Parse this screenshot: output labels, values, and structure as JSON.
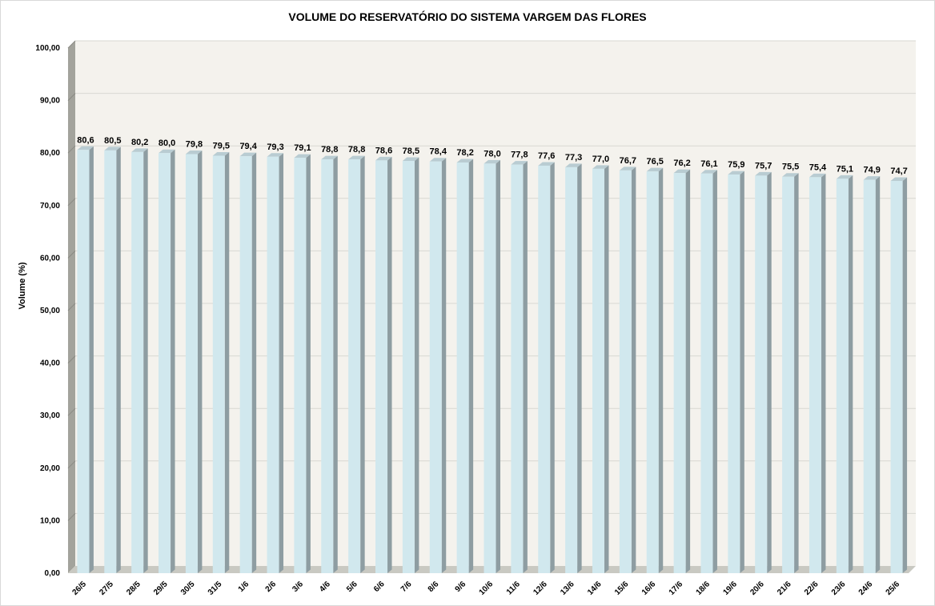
{
  "chart_data": {
    "type": "bar",
    "title": "VOLUME DO RESERVATÓRIO DO SISTEMA VARGEM DAS FLORES",
    "xlabel": "",
    "ylabel": "Volume (%)",
    "ylim": [
      0,
      100
    ],
    "yticks": [
      "0,00",
      "10,00",
      "20,00",
      "30,00",
      "40,00",
      "50,00",
      "60,00",
      "70,00",
      "80,00",
      "90,00",
      "100,00"
    ],
    "grid": true,
    "legend": "none",
    "categories": [
      "26/5",
      "27/5",
      "28/5",
      "29/5",
      "30/5",
      "31/5",
      "1/6",
      "2/6",
      "3/6",
      "4/6",
      "5/6",
      "6/6",
      "7/6",
      "8/6",
      "9/6",
      "10/6",
      "11/6",
      "12/6",
      "13/6",
      "14/6",
      "15/6",
      "16/6",
      "17/6",
      "18/6",
      "19/6",
      "20/6",
      "21/6",
      "22/6",
      "23/6",
      "24/6",
      "25/6"
    ],
    "values": [
      80.6,
      80.5,
      80.2,
      80.0,
      79.8,
      79.5,
      79.4,
      79.3,
      79.1,
      78.8,
      78.8,
      78.6,
      78.5,
      78.4,
      78.2,
      78.0,
      77.8,
      77.6,
      77.3,
      77.0,
      76.7,
      76.5,
      76.2,
      76.1,
      75.9,
      75.7,
      75.5,
      75.4,
      75.1,
      74.9,
      74.7
    ],
    "value_labels": [
      "80,6",
      "80,5",
      "80,2",
      "80,0",
      "79,8",
      "79,5",
      "79,4",
      "79,3",
      "79,1",
      "78,8",
      "78,8",
      "78,6",
      "78,5",
      "78,4",
      "78,2",
      "78,0",
      "77,8",
      "77,6",
      "77,3",
      "77,0",
      "76,7",
      "76,5",
      "76,2",
      "76,1",
      "75,9",
      "75,7",
      "75,5",
      "75,4",
      "75,1",
      "74,9",
      "74,7"
    ],
    "colors": {
      "bar_front": "#d1e8ee",
      "bar_side": "#8e9da2",
      "bar_top": "#b9ccd2",
      "plot_bg": "#f4f2ed",
      "wall_side": "#a3a39c",
      "floor": "#c9c9c2",
      "gridline": "#d8d8d2"
    }
  }
}
